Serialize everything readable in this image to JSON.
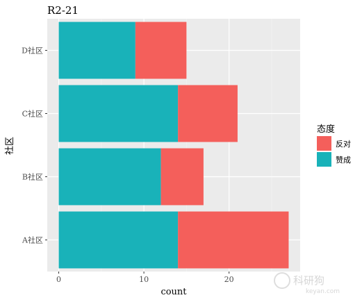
{
  "chart_data": {
    "type": "bar",
    "orientation": "horizontal",
    "stacked": true,
    "title": "R2-21",
    "xlabel": "count",
    "ylabel": "社区",
    "categories": [
      "A社区",
      "B社区",
      "C社区",
      "D社区"
    ],
    "series": [
      {
        "name": "赞成",
        "values": [
          14,
          12,
          14,
          9
        ],
        "color": "#19B2B9"
      },
      {
        "name": "反对",
        "values": [
          13,
          5,
          7,
          6
        ],
        "color": "#F45F5B"
      }
    ],
    "xlim": [
      -1.35,
      28.35
    ],
    "xticks": [
      0,
      10,
      20
    ],
    "grid": true,
    "legend": {
      "title": "态度",
      "position": "right",
      "entries": [
        {
          "label": "反对",
          "color": "#F45F5B"
        },
        {
          "label": "赞成",
          "color": "#19B2B9"
        }
      ]
    },
    "panel_background": "#EBEBEB"
  },
  "watermark": {
    "text": "keyan.com",
    "logo_text": "科研狗"
  }
}
